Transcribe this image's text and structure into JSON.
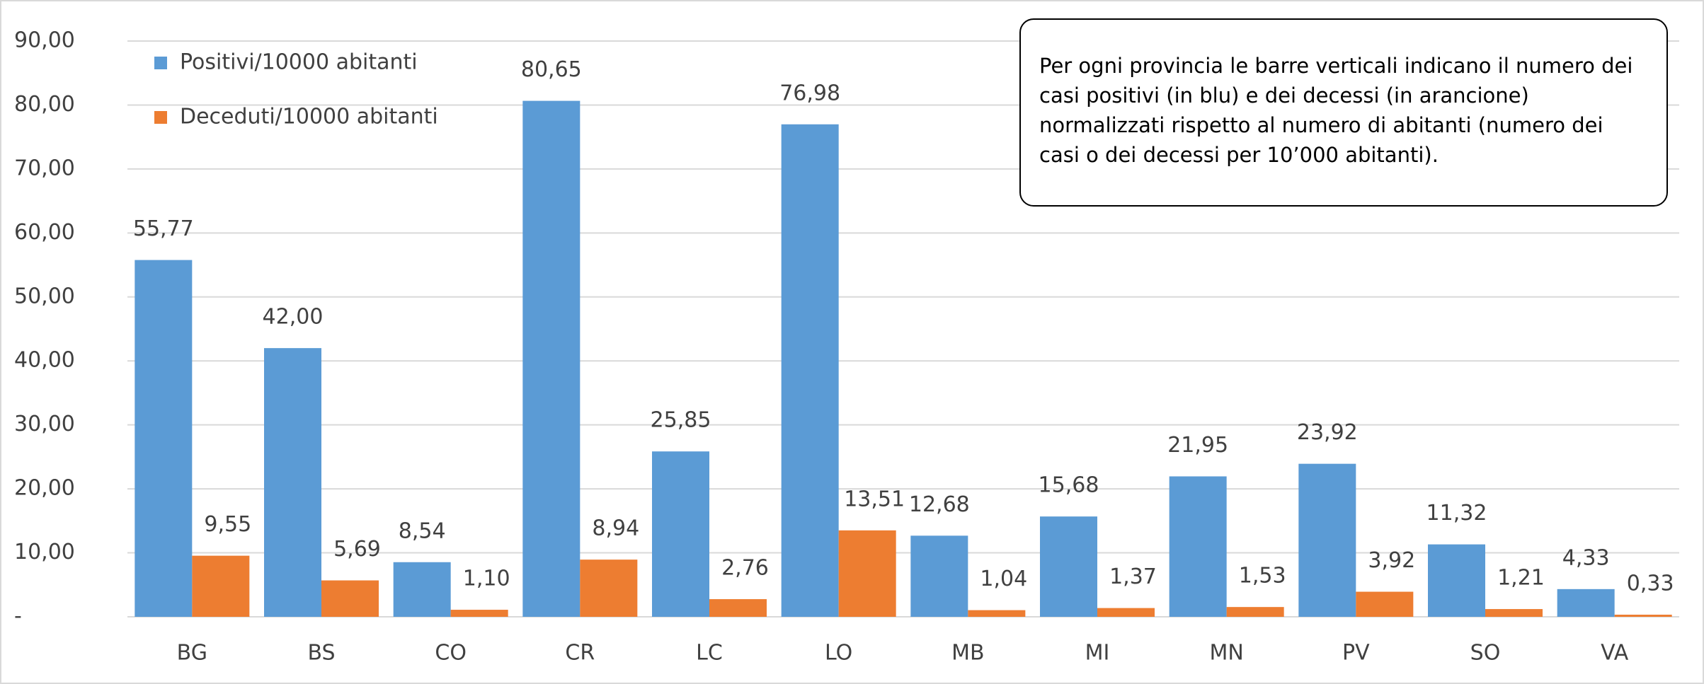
{
  "chart_data": {
    "type": "bar",
    "categories": [
      "BG",
      "BS",
      "CO",
      "CR",
      "LC",
      "LO",
      "MB",
      "MI",
      "MN",
      "PV",
      "SO",
      "VA"
    ],
    "series": [
      {
        "name": "Positivi/10000 abitanti",
        "color": "#5b9bd5",
        "values": [
          55.77,
          42.0,
          8.54,
          80.65,
          25.85,
          76.98,
          12.68,
          15.68,
          21.95,
          23.92,
          11.32,
          4.33
        ],
        "value_labels": [
          "55,77",
          "42,00",
          "8,54",
          "80,65",
          "25,85",
          "76,98",
          "12,68",
          "15,68",
          "21,95",
          "23,92",
          "11,32",
          "4,33"
        ]
      },
      {
        "name": "Deceduti/10000 abitanti",
        "color": "#ed7d31",
        "values": [
          9.55,
          5.69,
          1.1,
          8.94,
          2.76,
          13.51,
          1.04,
          1.37,
          1.53,
          3.92,
          1.21,
          0.33
        ],
        "value_labels": [
          "9,55",
          "5,69",
          "1,10",
          "8,94",
          "2,76",
          "13,51",
          "1,04",
          "1,37",
          "1,53",
          "3,92",
          "1,21",
          "0,33"
        ]
      }
    ],
    "ylim": [
      0,
      90
    ],
    "yticks": [
      {
        "value": 0,
        "label": "-"
      },
      {
        "value": 10,
        "label": "10,00"
      },
      {
        "value": 20,
        "label": "20,00"
      },
      {
        "value": 30,
        "label": "30,00"
      },
      {
        "value": 40,
        "label": "40,00"
      },
      {
        "value": 50,
        "label": "50,00"
      },
      {
        "value": 60,
        "label": "60,00"
      },
      {
        "value": 70,
        "label": "70,00"
      },
      {
        "value": 80,
        "label": "80,00"
      },
      {
        "value": 90,
        "label": "90,00"
      }
    ],
    "grid": true,
    "legend": "top-left",
    "annotation": "Per ogni provincia le barre verticali indicano il numero dei casi positivi (in blu) e dei decessi (in arancione) normalizzati rispetto al numero di abitanti (numero dei casi o dei decessi per 10’000 abitanti)."
  }
}
